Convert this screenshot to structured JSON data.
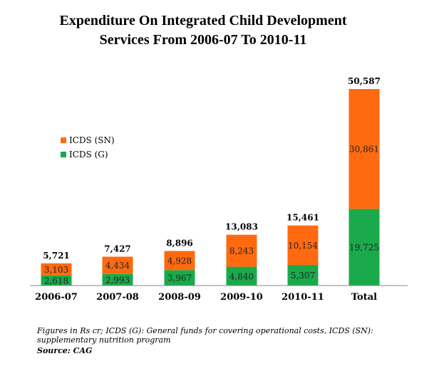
{
  "chart_data": {
    "type": "bar",
    "stacked": true,
    "title_lines": [
      "Expenditure On Integrated Child Development",
      "Services  From 2006-07 To 2010-11"
    ],
    "categories": [
      "2006-07",
      "2007-08",
      "2008-09",
      "2009-10",
      "2010-11",
      "Total"
    ],
    "series": [
      {
        "name": "ICDS (G)",
        "values": [
          2618,
          2993,
          3967,
          4840,
          5307,
          19725
        ],
        "color": "#1aaa4b",
        "labels": [
          "2,618",
          "2,993",
          "3,967",
          "4,840",
          "5,307",
          "19,725"
        ]
      },
      {
        "name": "ICDS (SN)",
        "values": [
          3103,
          4434,
          4928,
          8243,
          10154,
          30861
        ],
        "color": "#ff6a10",
        "labels": [
          "3,103",
          "4,434",
          "4,928",
          "8,243",
          "10,154",
          "30,861"
        ]
      }
    ],
    "totals": [
      5721,
      7427,
      8896,
      13083,
      15461,
      50587
    ],
    "total_labels": [
      "5,721",
      "7,427",
      "8,896",
      "13,083",
      "15,461",
      "50,587"
    ],
    "legend": [
      {
        "name": "ICDS (SN)",
        "color": "#ff6a10"
      },
      {
        "name": "ICDS (G)",
        "color": "#1aaa4b"
      }
    ],
    "legend_position": "left",
    "grid": false,
    "ylim": [
      0,
      50587
    ]
  },
  "footnote": "Figures in Rs cr; ICDS (G): General funds for covering operational costs, ICDS (SN): supplementary nutrition program",
  "source": "Source: CAG"
}
